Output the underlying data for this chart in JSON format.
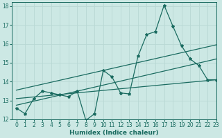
{
  "xlabel": "Humidex (Indice chaleur)",
  "bg_color": "#cce8e4",
  "line_color": "#1a6b60",
  "grid_color": "#b8d8d4",
  "xlim": [
    -0.5,
    23
  ],
  "ylim": [
    12,
    18.2
  ],
  "yticks": [
    12,
    13,
    14,
    15,
    16,
    17,
    18
  ],
  "xticks": [
    0,
    1,
    2,
    3,
    4,
    5,
    6,
    7,
    8,
    9,
    10,
    11,
    12,
    13,
    14,
    15,
    16,
    17,
    18,
    19,
    20,
    21,
    22,
    23
  ],
  "line1_x": [
    0,
    1,
    2,
    3,
    4,
    5,
    6,
    7,
    8,
    9,
    10,
    11,
    12,
    13,
    14,
    15,
    16,
    17,
    18,
    19,
    20,
    21,
    22,
    23
  ],
  "line1_y": [
    12.6,
    12.3,
    13.1,
    13.5,
    13.4,
    13.3,
    13.2,
    13.5,
    11.95,
    12.3,
    14.6,
    14.25,
    13.4,
    13.35,
    15.35,
    16.5,
    16.65,
    18.05,
    16.95,
    15.9,
    15.2,
    14.85,
    14.1,
    14.1
  ],
  "line2_x": [
    0,
    23
  ],
  "line2_y": [
    13.55,
    15.95
  ],
  "line3_x": [
    0,
    23
  ],
  "line3_y": [
    13.1,
    14.1
  ],
  "line4_x": [
    0,
    23
  ],
  "line4_y": [
    12.75,
    15.2
  ],
  "tick_fontsize": 5.5,
  "xlabel_fontsize": 6.5,
  "linewidth": 0.9,
  "markersize": 3.0
}
